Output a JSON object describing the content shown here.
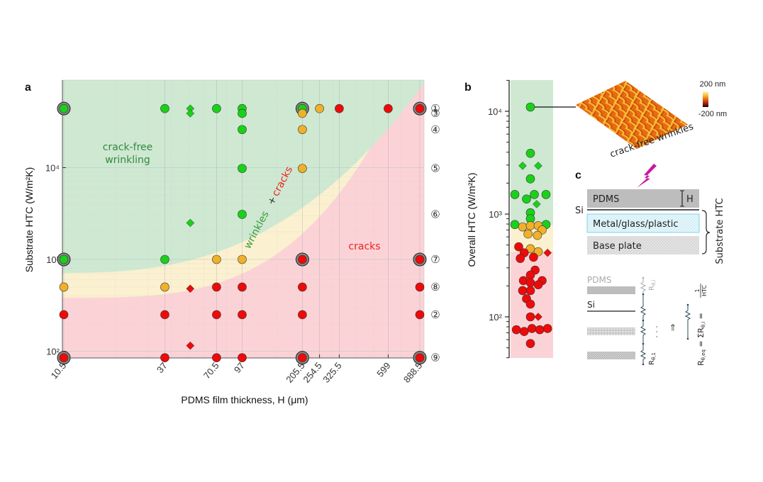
{
  "panels": {
    "a": "a",
    "b": "b",
    "c": "c"
  },
  "colors": {
    "green_region": "#cfe8d2",
    "yellow_region": "#fbf0cf",
    "red_region": "#fbd3d6",
    "green_marker": "#19d119",
    "orange_marker": "#f0b02a",
    "red_marker": "#ee0a0a",
    "region_text_green": "#2f8a3e",
    "region_text_red": "#ee2222",
    "lightning": "#c8189e"
  },
  "chart_data": [
    {
      "id": "panel-a",
      "type": "scatter",
      "xscale": "log",
      "yscale": "log",
      "xlabel": "PDMS film thickness, H (μm)",
      "ylabel": "Substrate HTC (W/m²K)",
      "xlim": [
        10.5,
        888.5
      ],
      "ylim": [
        80,
        90000
      ],
      "xticks": [
        10.5,
        37,
        70.5,
        97,
        205.5,
        254.5,
        325.5,
        599,
        888.5
      ],
      "xtick_labels": [
        "10.5",
        "37",
        "70.5",
        "97",
        "205.5",
        "254.5",
        "325.5",
        "599",
        "888.5"
      ],
      "yticks": [
        100,
        1000,
        10000
      ],
      "ytick_labels": [
        "10²",
        "10³",
        "10⁴"
      ],
      "grid": true,
      "regions": [
        {
          "name": "crack-free wrinkling",
          "color": "green"
        },
        {
          "name": "wrinkles + cracks",
          "color": "yellow"
        },
        {
          "name": "cracks",
          "color": "red"
        }
      ],
      "region_labels": {
        "crack_free_line1": "crack-free",
        "crack_free_line2": "wrinkling",
        "wrinkles": "wrinkles",
        "plus": "+",
        "cracks_mixed": "cracks",
        "cracks": "cracks"
      },
      "row_labels": [
        {
          "label": "①",
          "htc": 44000
        },
        {
          "label": "③",
          "htc": 39000
        },
        {
          "label": "④",
          "htc": 26000
        },
        {
          "label": "⑤",
          "htc": 9800
        },
        {
          "label": "⑥",
          "htc": 3100
        },
        {
          "label": "⑦",
          "htc": 1000
        },
        {
          "label": "⑧",
          "htc": 500
        },
        {
          "label": "②",
          "htc": 250
        },
        {
          "label": "⑨",
          "htc": 85
        }
      ],
      "points": [
        {
          "x": 10.5,
          "y": 44000,
          "class": "green",
          "shape": "circle",
          "ring": true
        },
        {
          "x": 37,
          "y": 44000,
          "class": "green",
          "shape": "circle"
        },
        {
          "x": 50.8,
          "y": 44000,
          "class": "green",
          "shape": "diamond"
        },
        {
          "x": 50.8,
          "y": 39000,
          "class": "green",
          "shape": "diamond"
        },
        {
          "x": 70.5,
          "y": 44000,
          "class": "green",
          "shape": "circle"
        },
        {
          "x": 97,
          "y": 44000,
          "class": "green",
          "shape": "circle"
        },
        {
          "x": 97,
          "y": 39000,
          "class": "green",
          "shape": "circle"
        },
        {
          "x": 205.5,
          "y": 44000,
          "class": "green",
          "shape": "circle",
          "ring": true
        },
        {
          "x": 254.5,
          "y": 44000,
          "class": "orange",
          "shape": "circle"
        },
        {
          "x": 325.5,
          "y": 44000,
          "class": "red",
          "shape": "circle"
        },
        {
          "x": 599,
          "y": 44000,
          "class": "red",
          "shape": "circle"
        },
        {
          "x": 888.5,
          "y": 44000,
          "class": "red",
          "shape": "circle",
          "ring": true
        },
        {
          "x": 205.5,
          "y": 39000,
          "class": "orange",
          "shape": "circle"
        },
        {
          "x": 97,
          "y": 26000,
          "class": "green",
          "shape": "circle"
        },
        {
          "x": 205.5,
          "y": 26000,
          "class": "orange",
          "shape": "circle"
        },
        {
          "x": 97,
          "y": 9800,
          "class": "green",
          "shape": "circle"
        },
        {
          "x": 205.5,
          "y": 9800,
          "class": "orange",
          "shape": "circle"
        },
        {
          "x": 97,
          "y": 3100,
          "class": "green",
          "shape": "circle"
        },
        {
          "x": 50.8,
          "y": 2500,
          "class": "green",
          "shape": "diamond"
        },
        {
          "x": 10.5,
          "y": 1000,
          "class": "green",
          "shape": "circle",
          "ring": true
        },
        {
          "x": 37,
          "y": 1000,
          "class": "green",
          "shape": "circle"
        },
        {
          "x": 70.5,
          "y": 1000,
          "class": "orange",
          "shape": "circle"
        },
        {
          "x": 97,
          "y": 1000,
          "class": "orange",
          "shape": "circle"
        },
        {
          "x": 205.5,
          "y": 1000,
          "class": "red",
          "shape": "circle",
          "ring": true
        },
        {
          "x": 888.5,
          "y": 1000,
          "class": "red",
          "shape": "circle",
          "ring": true
        },
        {
          "x": 10.5,
          "y": 500,
          "class": "orange",
          "shape": "circle"
        },
        {
          "x": 37,
          "y": 500,
          "class": "orange",
          "shape": "circle"
        },
        {
          "x": 50.8,
          "y": 480,
          "class": "red",
          "shape": "diamond"
        },
        {
          "x": 70.5,
          "y": 500,
          "class": "red",
          "shape": "circle"
        },
        {
          "x": 97,
          "y": 500,
          "class": "red",
          "shape": "circle"
        },
        {
          "x": 205.5,
          "y": 500,
          "class": "red",
          "shape": "circle"
        },
        {
          "x": 888.5,
          "y": 500,
          "class": "red",
          "shape": "circle"
        },
        {
          "x": 10.5,
          "y": 250,
          "class": "red",
          "shape": "circle"
        },
        {
          "x": 37,
          "y": 250,
          "class": "red",
          "shape": "circle"
        },
        {
          "x": 70.5,
          "y": 250,
          "class": "red",
          "shape": "circle"
        },
        {
          "x": 97,
          "y": 250,
          "class": "red",
          "shape": "circle"
        },
        {
          "x": 205.5,
          "y": 250,
          "class": "red",
          "shape": "circle"
        },
        {
          "x": 888.5,
          "y": 250,
          "class": "red",
          "shape": "circle"
        },
        {
          "x": 50.8,
          "y": 115,
          "class": "red",
          "shape": "diamond"
        },
        {
          "x": 10.5,
          "y": 85,
          "class": "red",
          "shape": "circle",
          "ring": true
        },
        {
          "x": 37,
          "y": 85,
          "class": "red",
          "shape": "circle"
        },
        {
          "x": 70.5,
          "y": 85,
          "class": "red",
          "shape": "circle"
        },
        {
          "x": 97,
          "y": 85,
          "class": "red",
          "shape": "circle"
        },
        {
          "x": 205.5,
          "y": 85,
          "class": "red",
          "shape": "circle",
          "ring": true
        },
        {
          "x": 888.5,
          "y": 85,
          "class": "red",
          "shape": "circle",
          "ring": true
        }
      ]
    },
    {
      "id": "panel-b",
      "type": "scatter",
      "yscale": "log",
      "ylabel": "Overall  HTC (W/m²K)",
      "ylim": [
        40,
        20000
      ],
      "yticks": [
        100,
        1000,
        10000
      ],
      "ytick_labels": [
        "10²",
        "10³",
        "10⁴"
      ],
      "region_bounds": {
        "green_above": 780,
        "yellow_between": [
          430,
          780
        ],
        "red_below": 430
      },
      "points": [
        {
          "jitter": 0,
          "y": 11000,
          "class": "green",
          "shape": "circle"
        },
        {
          "jitter": 0,
          "y": 3900,
          "class": "green",
          "shape": "circle"
        },
        {
          "jitter": -1,
          "y": 2950,
          "class": "green",
          "shape": "diamond"
        },
        {
          "jitter": 1,
          "y": 2950,
          "class": "green",
          "shape": "diamond"
        },
        {
          "jitter": 0,
          "y": 2200,
          "class": "green",
          "shape": "circle"
        },
        {
          "jitter": -2,
          "y": 1550,
          "class": "green",
          "shape": "circle"
        },
        {
          "jitter": 0.5,
          "y": 1550,
          "class": "green",
          "shape": "circle"
        },
        {
          "jitter": 2,
          "y": 1550,
          "class": "green",
          "shape": "circle"
        },
        {
          "jitter": -0.5,
          "y": 1400,
          "class": "green",
          "shape": "circle"
        },
        {
          "jitter": 0.8,
          "y": 1250,
          "class": "green",
          "shape": "diamond"
        },
        {
          "jitter": 0,
          "y": 1030,
          "class": "green",
          "shape": "circle"
        },
        {
          "jitter": 0,
          "y": 900,
          "class": "green",
          "shape": "circle"
        },
        {
          "jitter": -2,
          "y": 790,
          "class": "green",
          "shape": "circle"
        },
        {
          "jitter": 2,
          "y": 790,
          "class": "green",
          "shape": "circle"
        },
        {
          "jitter": -1,
          "y": 750,
          "class": "orange",
          "shape": "circle"
        },
        {
          "jitter": 0,
          "y": 770,
          "class": "orange",
          "shape": "circle"
        },
        {
          "jitter": 1,
          "y": 770,
          "class": "orange",
          "shape": "circle"
        },
        {
          "jitter": 1.5,
          "y": 700,
          "class": "orange",
          "shape": "circle"
        },
        {
          "jitter": -0.3,
          "y": 640,
          "class": "orange",
          "shape": "circle"
        },
        {
          "jitter": 0.9,
          "y": 620,
          "class": "orange",
          "shape": "circle"
        },
        {
          "jitter": -1.5,
          "y": 480,
          "class": "red",
          "shape": "circle"
        },
        {
          "jitter": 0,
          "y": 460,
          "class": "orange",
          "shape": "circle"
        },
        {
          "jitter": 1,
          "y": 430,
          "class": "orange",
          "shape": "circle"
        },
        {
          "jitter": -0.8,
          "y": 420,
          "class": "red",
          "shape": "circle"
        },
        {
          "jitter": 2.2,
          "y": 420,
          "class": "red",
          "shape": "diamond"
        },
        {
          "jitter": -1.3,
          "y": 370,
          "class": "red",
          "shape": "circle"
        },
        {
          "jitter": 0.4,
          "y": 380,
          "class": "red",
          "shape": "circle"
        },
        {
          "jitter": 0.6,
          "y": 285,
          "class": "red",
          "shape": "circle"
        },
        {
          "jitter": 0,
          "y": 255,
          "class": "red",
          "shape": "circle"
        },
        {
          "jitter": -0.9,
          "y": 225,
          "class": "red",
          "shape": "circle"
        },
        {
          "jitter": 0,
          "y": 215,
          "class": "red",
          "shape": "circle"
        },
        {
          "jitter": 1.5,
          "y": 225,
          "class": "red",
          "shape": "circle"
        },
        {
          "jitter": 1,
          "y": 205,
          "class": "red",
          "shape": "circle"
        },
        {
          "jitter": -1,
          "y": 180,
          "class": "red",
          "shape": "circle"
        },
        {
          "jitter": 0,
          "y": 180,
          "class": "red",
          "shape": "circle"
        },
        {
          "jitter": -0.5,
          "y": 150,
          "class": "red",
          "shape": "circle"
        },
        {
          "jitter": 0,
          "y": 133,
          "class": "red",
          "shape": "circle"
        },
        {
          "jitter": 0,
          "y": 100,
          "class": "red",
          "shape": "circle"
        },
        {
          "jitter": 1,
          "y": 100,
          "class": "red",
          "shape": "diamond"
        },
        {
          "jitter": -1.8,
          "y": 75,
          "class": "red",
          "shape": "circle"
        },
        {
          "jitter": -0.8,
          "y": 72,
          "class": "red",
          "shape": "circle"
        },
        {
          "jitter": 0.2,
          "y": 77,
          "class": "red",
          "shape": "circle"
        },
        {
          "jitter": 1.2,
          "y": 75,
          "class": "red",
          "shape": "circle"
        },
        {
          "jitter": 2.2,
          "y": 77,
          "class": "red",
          "shape": "circle"
        },
        {
          "jitter": 0,
          "y": 55,
          "class": "red",
          "shape": "circle"
        }
      ]
    }
  ],
  "inset": {
    "caption": "crack-free wrinkles",
    "colorbar_max": "200 nm",
    "colorbar_min": "-200 nm"
  },
  "diagram_c": {
    "layers": [
      "PDMS",
      "Metal/glass/plastic",
      "Base plate"
    ],
    "si_label": "Si",
    "thickness_label": "H",
    "bracket_label": "Substrate HTC",
    "circuit": {
      "pdms_label": "PDMS",
      "si_label": "Si",
      "r_top": "R",
      "r_top_sub": "θ,i",
      "r_bottom": "R",
      "r_bottom_sub": "θ,1",
      "dots": "· · ·",
      "arrow": "⇒",
      "equation": "R",
      "eq_sub": "θ,eq",
      "eq_rest": " = ΣR",
      "eq_sub2": "θ,i",
      "eq_eq": " = ",
      "frac_num": "1",
      "frac_den": "HTC"
    }
  }
}
